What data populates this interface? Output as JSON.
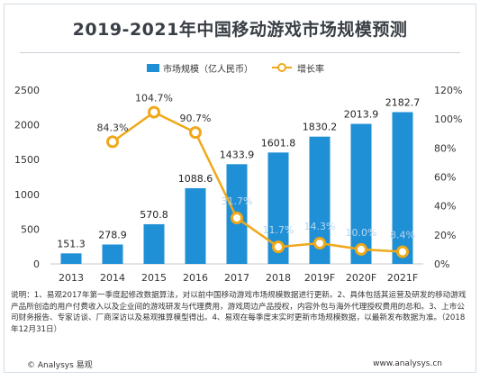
{
  "title": "2019-2021年中国移动游戏市场规模预测",
  "chart_data": {
    "type": "bar",
    "categories": [
      "2013",
      "2014",
      "2015",
      "2016",
      "2017",
      "2018",
      "2019F",
      "2020F",
      "2021F"
    ],
    "series": [
      {
        "name": "市场规模（亿人民币）",
        "type": "bar",
        "values": [
          151.3,
          278.9,
          570.8,
          1088.6,
          1433.9,
          1601.8,
          1830.2,
          2013.9,
          2182.7
        ],
        "labels": [
          "151.3",
          "278.9",
          "570.8",
          "1088.6",
          "1433.9",
          "1601.8",
          "1830.2",
          "2013.9",
          "2182.7"
        ],
        "color": "#1f8fd6"
      },
      {
        "name": "增长率",
        "type": "line",
        "axis": "right",
        "values": [
          null,
          84.3,
          104.7,
          90.7,
          31.7,
          11.7,
          14.3,
          10.0,
          8.4
        ],
        "labels": [
          "",
          "84.3%",
          "104.7%",
          "90.7%",
          "31.7%",
          "11.7%",
          "14.3%",
          "10.0%",
          "8.4%"
        ],
        "color": "#f0a818"
      }
    ],
    "ylim_left": [
      0,
      2500
    ],
    "yticks_left": [
      "0",
      "500",
      "1000",
      "1500",
      "2000",
      "2500"
    ],
    "ylim_right": [
      0,
      120
    ],
    "yticks_right": [
      "0%",
      "20%",
      "40%",
      "60%",
      "80%",
      "100%",
      "120%"
    ],
    "legend_position": "top"
  },
  "note": "说明：1、易观2017年第一季度起修改数据算法，对以前中国移动游戏市场规模数据进行更新。2、具体包括其运营及研发的移动游戏产品所创造的用户付费收入以及企业间的游戏研发与代理费用，游戏周边产品授权，内容外包与海外代理授权费用的总和。3、上市公司财务报告、专家访谈、厂商深访以及易观推算模型得出。4、易观在每季度末实时更新市场规模数据，以最新发布数据为准。（2018年12月31日）",
  "copyright": "© Analysys 易观",
  "website": "www.analysys.cn"
}
